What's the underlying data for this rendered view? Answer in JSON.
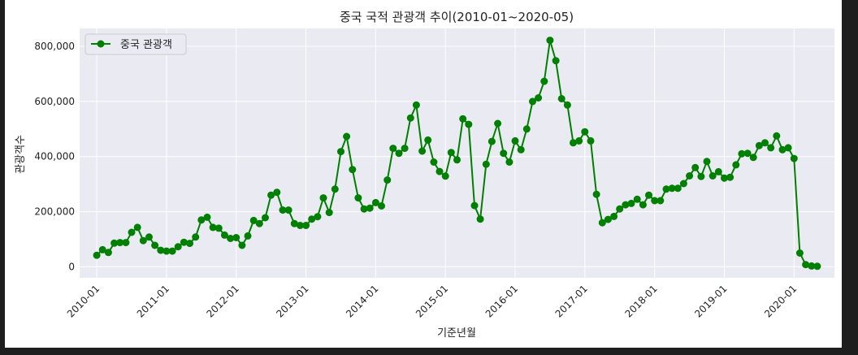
{
  "chart_data": {
    "type": "line",
    "title": "중국 국적 관광객 추이(2010-01~2020-05)",
    "xlabel": "기준년월",
    "ylabel": "관광객수",
    "series": [
      {
        "name": "중국 관광객",
        "color": "#008000",
        "marker": "circle",
        "values": [
          42000,
          62000,
          52000,
          86000,
          88000,
          88000,
          125000,
          143000,
          95000,
          108000,
          78000,
          60000,
          57000,
          57000,
          73000,
          89000,
          85000,
          108000,
          170000,
          180000,
          143000,
          140000,
          115000,
          103000,
          106000,
          78000,
          112000,
          168000,
          157000,
          178000,
          260000,
          270000,
          206000,
          206000,
          157000,
          150000,
          150000,
          173000,
          182000,
          250000,
          197000,
          282000,
          418000,
          473000,
          353000,
          250000,
          210000,
          213000,
          233000,
          221000,
          315000,
          430000,
          412000,
          430000,
          540000,
          587000,
          420000,
          460000,
          380000,
          346000,
          329000,
          415000,
          388000,
          537000,
          517000,
          222000,
          173000,
          372000,
          455000,
          520000,
          412000,
          380000,
          457000,
          425000,
          500000,
          600000,
          613000,
          673000,
          822000,
          748000,
          610000,
          587000,
          450000,
          457000,
          490000,
          457000,
          263000,
          160000,
          172000,
          183000,
          210000,
          225000,
          230000,
          245000,
          225000,
          260000,
          240000,
          240000,
          282000,
          285000,
          285000,
          302000,
          330000,
          360000,
          328000,
          382000,
          330000,
          345000,
          322000,
          325000,
          370000,
          410000,
          412000,
          397000,
          440000,
          450000,
          432000,
          475000,
          425000,
          432000,
          393000,
          50000,
          8000,
          3000,
          2000
        ]
      }
    ],
    "x_start": "2010-01",
    "x_end": "2020-05",
    "x_ticks": [
      "2010-01",
      "2011-01",
      "2012-01",
      "2013-01",
      "2014-01",
      "2015-01",
      "2016-01",
      "2017-01",
      "2018-01",
      "2019-01",
      "2020-01"
    ],
    "y_ticks": [
      0,
      200000,
      400000,
      600000,
      800000
    ],
    "y_tick_labels": [
      "0",
      "200,000",
      "400,000",
      "600,000",
      "800,000"
    ],
    "ylim": [
      -40000,
      865000
    ],
    "grid": true,
    "legend_position": "top-left",
    "plot_background": "#eaeaf2"
  }
}
